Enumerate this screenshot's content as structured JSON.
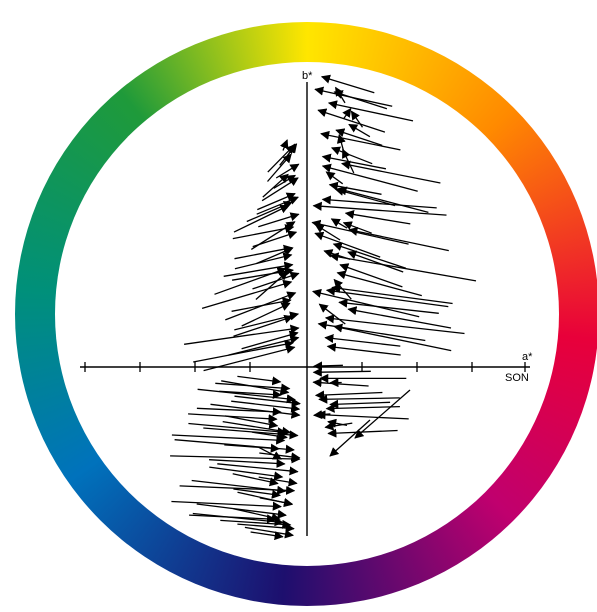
{
  "diagram": {
    "axes": {
      "vertical_label": "b*",
      "horizontal_label": "a*",
      "horizontal_sublabel": "SON"
    },
    "hue_ring": {
      "colors": {
        "top": "#ffe600",
        "top_right": "#ff8a00",
        "right": "#e8003a",
        "bottom_right": "#c0006e",
        "bottom": "#1d0f6e",
        "bottom_left": "#0072bc",
        "left": "#00907a",
        "top_left": "#1f9a3a"
      }
    },
    "arrow_color": "#000000",
    "axis_color": "#000000"
  }
}
